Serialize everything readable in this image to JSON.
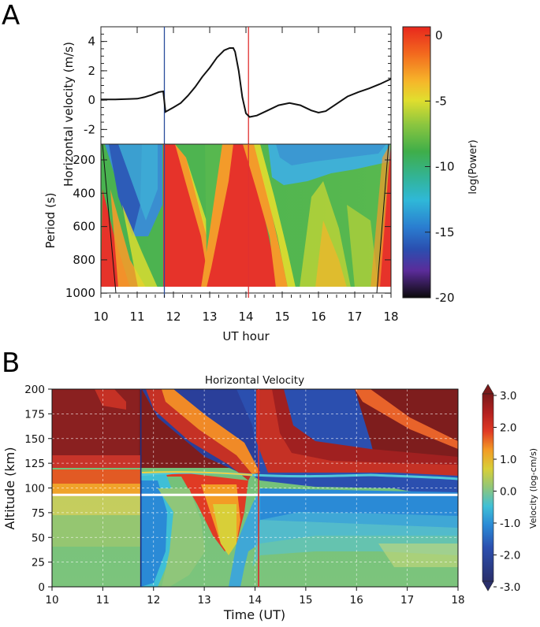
{
  "panel_a": {
    "letter": "A",
    "x_label": "UT hour",
    "x_ticks": [
      "10",
      "11",
      "12",
      "13",
      "14",
      "15",
      "16",
      "17",
      "18"
    ],
    "top": {
      "y_label": "Horizontal velocity (m/s)",
      "y_ticks": [
        "4",
        "2",
        "0",
        "-2"
      ]
    },
    "bottom": {
      "y_label": "Period (s)",
      "y_ticks": [
        "200",
        "400",
        "600",
        "800",
        "1000"
      ]
    },
    "colorbar": {
      "label": "log(Power)",
      "ticks": [
        "0",
        "-5",
        "-10",
        "-15",
        "-20"
      ]
    }
  },
  "panel_b": {
    "letter": "B",
    "title": "Horizontal Velocity",
    "x_label": "Time (UT)",
    "y_label": "Altitude (km)",
    "x_ticks": [
      "10",
      "11",
      "12",
      "13",
      "14",
      "15",
      "16",
      "17",
      "18"
    ],
    "y_ticks": [
      "0",
      "25",
      "50",
      "75",
      "100",
      "125",
      "150",
      "175",
      "200"
    ],
    "colorbar": {
      "label": "Velocity (log-cm/s)",
      "ticks": [
        "3.0",
        "2.0",
        "1.0",
        "0.0",
        "-1.0",
        "-2.0",
        "-3.0"
      ]
    }
  },
  "chart_data": [
    {
      "type": "line",
      "title": "",
      "xlabel": "UT hour",
      "ylabel": "Horizontal velocity (m/s)",
      "xlim": [
        10,
        18
      ],
      "ylim": [
        -3,
        5
      ],
      "x": [
        10.0,
        10.4,
        10.8,
        11.0,
        11.2,
        11.4,
        11.6,
        11.72,
        11.78,
        12.0,
        12.2,
        12.4,
        12.6,
        12.8,
        13.0,
        13.2,
        13.4,
        13.55,
        13.65,
        13.7,
        13.8,
        13.9,
        14.0,
        14.1,
        14.3,
        14.6,
        14.9,
        15.2,
        15.5,
        15.8,
        16.0,
        16.2,
        16.5,
        16.8,
        17.1,
        17.4,
        17.7,
        18.0
      ],
      "values": [
        0.05,
        0.05,
        0.08,
        0.1,
        0.2,
        0.35,
        0.55,
        0.6,
        -0.8,
        -0.5,
        -0.2,
        0.3,
        0.9,
        1.6,
        2.2,
        2.9,
        3.4,
        3.55,
        3.55,
        3.3,
        2.0,
        0.2,
        -0.9,
        -1.15,
        -1.05,
        -0.7,
        -0.35,
        -0.2,
        -0.35,
        -0.7,
        -0.85,
        -0.75,
        -0.25,
        0.25,
        0.55,
        0.8,
        1.1,
        1.45
      ],
      "markers": [
        {
          "x": 11.75,
          "color": "#2a4d9c"
        },
        {
          "x": 14.07,
          "color": "#e03030"
        }
      ]
    },
    {
      "type": "heatmap",
      "title": "",
      "xlabel": "UT hour",
      "ylabel": "Period (s)",
      "xlim": [
        10,
        18
      ],
      "ylim": [
        1000,
        100
      ],
      "colorbar": {
        "label": "log(Power)",
        "range": [
          -20,
          0
        ]
      },
      "markers": [
        {
          "x": 11.75,
          "color": "#2a4d9c"
        },
        {
          "x": 14.07,
          "color": "#e03030"
        }
      ]
    },
    {
      "type": "heatmap",
      "title": "Horizontal Velocity",
      "xlabel": "Time (UT)",
      "ylabel": "Altitude (km)",
      "xlim": [
        10,
        18
      ],
      "ylim": [
        0,
        200
      ],
      "colorbar": {
        "label": "Velocity (log-cm/s)",
        "range": [
          -3,
          3
        ]
      },
      "reference_altitude_km": 93,
      "markers": [
        {
          "x": 11.75,
          "color": "#2a4d9c"
        },
        {
          "x": 14.07,
          "color": "#e03030"
        }
      ]
    }
  ]
}
